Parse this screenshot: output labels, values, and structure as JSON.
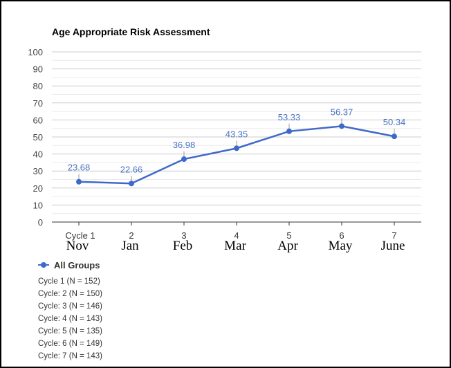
{
  "chart_data": {
    "type": "line",
    "title": "Age Appropriate Risk Assessment",
    "categories": [
      "Cycle 1",
      "2",
      "3",
      "4",
      "5",
      "6",
      "7"
    ],
    "month_labels": [
      "Nov",
      "Jan",
      "Feb",
      "Mar",
      "Apr",
      "May",
      "June"
    ],
    "y_ticks": [
      "0",
      "10",
      "20",
      "30",
      "40",
      "50",
      "60",
      "70",
      "80",
      "90",
      "100"
    ],
    "ylim": [
      0,
      100
    ],
    "grid": true,
    "legend_position": "bottom-left",
    "series": [
      {
        "name": "All Groups",
        "values": [
          23.68,
          22.66,
          36.98,
          43.35,
          53.33,
          56.37,
          50.34
        ],
        "labels": [
          "23.68",
          "22.66",
          "36.98",
          "43.35",
          "53.33",
          "56.37",
          "50.34"
        ],
        "color": "#3f69c9"
      }
    ]
  },
  "notes": [
    "Cycle 1 (N = 152)",
    "Cycle: 2 (N = 150)",
    "Cycle: 3 (N = 146)",
    "Cycle: 4 (N = 143)",
    "Cycle: 5 (N = 135)",
    "Cycle: 6 (N = 149)",
    "Cycle: 7 (N = 143)"
  ]
}
